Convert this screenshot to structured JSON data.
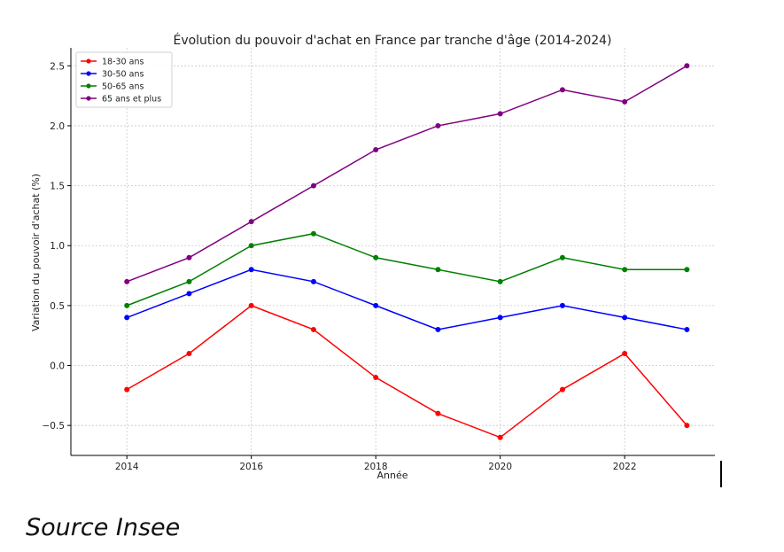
{
  "chart_data": {
    "type": "line",
    "title": "Évolution du pouvoir d'achat en France par tranche d'âge (2014-2024)",
    "xlabel": "Année",
    "ylabel": "Variation du pouvoir d'achat (%)",
    "x": [
      2014,
      2015,
      2016,
      2017,
      2018,
      2019,
      2020,
      2021,
      2022,
      2023
    ],
    "xlim": [
      2013.1,
      2023.45
    ],
    "ylim": [
      -0.75,
      2.65
    ],
    "xticks": [
      2014,
      2016,
      2018,
      2020,
      2022
    ],
    "xtick_labels": [
      "2014",
      "2016",
      "2018",
      "2020",
      "2022"
    ],
    "yticks": [
      -0.5,
      0.0,
      0.5,
      1.0,
      1.5,
      2.0,
      2.5
    ],
    "ytick_labels": [
      "−0.5",
      "0.0",
      "0.5",
      "1.0",
      "1.5",
      "2.0",
      "2.5"
    ],
    "grid": true,
    "legend_position": "top-left",
    "series": [
      {
        "name": "18-30 ans",
        "color": "#ff0000",
        "values": [
          -0.2,
          0.1,
          0.5,
          0.3,
          -0.1,
          -0.4,
          -0.6,
          -0.2,
          0.1,
          -0.5
        ]
      },
      {
        "name": "30-50 ans",
        "color": "#0000ff",
        "values": [
          0.4,
          0.6,
          0.8,
          0.7,
          0.5,
          0.3,
          0.4,
          0.5,
          0.4,
          0.3
        ]
      },
      {
        "name": "50-65 ans",
        "color": "#008000",
        "values": [
          0.5,
          0.7,
          1.0,
          1.1,
          0.9,
          0.8,
          0.7,
          0.9,
          0.8,
          0.8
        ]
      },
      {
        "name": "65 ans et plus",
        "color": "#800080",
        "values": [
          0.7,
          0.9,
          1.2,
          1.5,
          1.8,
          2.0,
          2.1,
          2.3,
          2.2,
          2.5
        ]
      }
    ]
  },
  "footer": {
    "source": "Source Insee"
  }
}
